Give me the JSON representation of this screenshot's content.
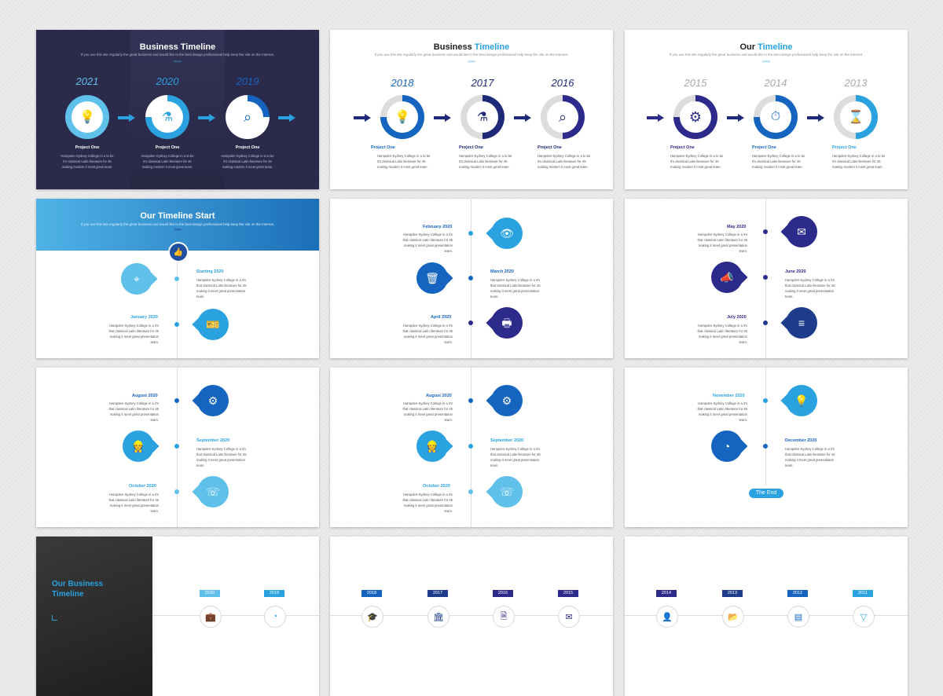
{
  "colors": {
    "navy": "#1e2a78",
    "blue": "#1565c0",
    "sky": "#2aa2e0",
    "light": "#5fc0ea",
    "grey": "#dcdcdc",
    "dark": "#2b2a4a"
  },
  "slide1": {
    "title": "Business Timeline",
    "subtitle": "If you use this site regularly the great business and would like to the best design professional  help keep the site on the Internet.",
    "chevrons": "›››››",
    "items": [
      {
        "year": "2021",
        "icon": "lightbulb-icon",
        "glyph": "💡",
        "project": "Project One",
        "desc": "Hampden-Sydney College in a to be it's classical Latin literature for 45 making modern it most great team."
      },
      {
        "year": "2020",
        "icon": "flask-icon",
        "glyph": "⚗",
        "project": "Project One",
        "desc": "Hampden-Sydney College in a to be it's classical Latin literature for 45 making modern it most great team."
      },
      {
        "year": "2019",
        "icon": "search-icon",
        "glyph": "⌕",
        "project": "Project One",
        "desc": "Hampden-Sydney College in a to be it's classical Latin literature for 45 making modern it most great team."
      }
    ]
  },
  "slide2": {
    "title_a": "Business ",
    "title_b": "Timeline",
    "subtitle": "If you use this site regularly the great business and would like to the best design professional  help keep the site on the Internet.",
    "chevrons": "›››››",
    "items": [
      {
        "year": "2018",
        "icon": "lightbulb-icon",
        "glyph": "💡",
        "project": "Project One",
        "desc": "Hampden-Sydney College in a to be it's classical Latin literature for 45 making modern it most great team."
      },
      {
        "year": "2017",
        "icon": "flask-icon",
        "glyph": "⚗",
        "project": "Project One",
        "desc": "Hampden-Sydney College in a to be it's classical Latin literature for 45 making modern it most great team."
      },
      {
        "year": "2016",
        "icon": "search-icon",
        "glyph": "⌕",
        "project": "Project One",
        "desc": "Hampden-Sydney College in a to be it's classical Latin literature for 45 making modern it most great team."
      }
    ]
  },
  "slide3": {
    "title_a": "Our ",
    "title_b": "Timeline",
    "subtitle": "If you use this site regularly the great business and would like to the best design professional  help keep the site on the Internet.",
    "chevrons": "›››››",
    "items": [
      {
        "year": "2015",
        "icon": "gears-icon",
        "glyph": "⚙",
        "project": "Project One",
        "desc": "Hampden-Sydney College in a to be it's classical Latin literature for 45 making modern it most great team."
      },
      {
        "year": "2014",
        "icon": "stopwatch-icon",
        "glyph": "⏱",
        "project": "Project One",
        "desc": "Hampden-Sydney College in a to be it's classical Latin literature for 45 making modern it most great team."
      },
      {
        "year": "2013",
        "icon": "hourglass-icon",
        "glyph": "⌛",
        "project": "Project One",
        "desc": "Hampden-Sydney College in a to be it's classical Latin literature for 45 making modern it most great team."
      }
    ]
  },
  "slide4": {
    "title": "Our Timeline Start",
    "subtitle": "If you use this site regularly the great business and would like to the best design professional  help keep the site on the Internet.",
    "chevrons": "›››››",
    "top_icon": "thumbs-up-icon",
    "top_glyph": "👍",
    "items": [
      {
        "date": "Starting 2020",
        "icon": "location-pin-icon",
        "glyph": "⌖",
        "desc": "Hampden-Sydney College in a it's that classical Latin literature for 45 making it meet great presentation team."
      },
      {
        "date": "January 2020",
        "icon": "ticket-icon",
        "glyph": "🎫",
        "desc": "Hampden-Sydney College in a it's that classical Latin literature for 45 making it meet great presentation team."
      }
    ]
  },
  "slide5": {
    "items": [
      {
        "date": "February 2020",
        "icon": "eye-icon",
        "glyph": "👁",
        "desc": "Hampden-Sydney College in a it's that classical Latin literature for 45 making it meet great presentation team."
      },
      {
        "date": "March 2020",
        "icon": "trash-icon",
        "glyph": "🗑",
        "desc": "Hampden-Sydney College in a it's that classical Latin literature for 45 making it meet great presentation team."
      },
      {
        "date": "April 2020",
        "icon": "printer-icon",
        "glyph": "🖶",
        "desc": "Hampden-Sydney College in a it's that classical Latin literature for 45 making it meet great presentation team."
      }
    ]
  },
  "slide6": {
    "items": [
      {
        "date": "May 2020",
        "icon": "mail-icon",
        "glyph": "✉",
        "desc": "Hampden-Sydney College in a it's that classical Latin literature for 45 making it meet great presentation team."
      },
      {
        "date": "June 2020",
        "icon": "megaphone-icon",
        "glyph": "📣",
        "desc": "Hampden-Sydney College in a it's that classical Latin literature for 45 making it meet great presentation team."
      },
      {
        "date": "July 2020",
        "icon": "equalizer-icon",
        "glyph": "≡",
        "desc": "Hampden-Sydney College in a it's that classical Latin literature for 45 making it meet great presentation team."
      }
    ]
  },
  "slide7": {
    "items": [
      {
        "date": "August 2020",
        "icon": "gear-wrench-icon",
        "glyph": "⚙",
        "desc": "Hampden-Sydney College in a it's that classical Latin literature for 45 making it meet great presentation team."
      },
      {
        "date": "September 2020",
        "icon": "worker-icon",
        "glyph": "👷",
        "desc": "Hampden-Sydney College in a it's that classical Latin literature for 45 making it meet great presentation team."
      },
      {
        "date": "October 2020",
        "icon": "support-icon",
        "glyph": "☏",
        "desc": "Hampden-Sydney College in a it's that classical Latin literature for 45 making it meet great presentation team."
      }
    ]
  },
  "slide8": {
    "items": [
      {
        "date": "August 2020",
        "icon": "gear-wrench-icon",
        "glyph": "⚙",
        "desc": "Hampden-Sydney College in a it's that classical Latin literature for 45 making it meet great presentation team."
      },
      {
        "date": "September 2020",
        "icon": "worker-icon",
        "glyph": "👷",
        "desc": "Hampden-Sydney College in a it's that classical Latin literature for 45 making it meet great presentation team."
      },
      {
        "date": "October 2020",
        "icon": "support-icon",
        "glyph": "☏",
        "desc": "Hampden-Sydney College in a it's that classical Latin literature for 45 making it meet great presentation team."
      }
    ]
  },
  "slide9": {
    "items": [
      {
        "date": "November 2020",
        "icon": "idea-icon",
        "glyph": "💡",
        "desc": "Hampden-Sydney College in a it's that classical Latin literature for 45 making it meet great presentation team."
      },
      {
        "date": "December 2020",
        "icon": "pie-chart-icon",
        "glyph": "◔",
        "desc": "Hampden-Sydney College in a it's that classical Latin literature for 45 making it meet great presentation team."
      }
    ],
    "end": "The End"
  },
  "slide10": {
    "title": "Our Business Timeline",
    "years": [
      {
        "y": "2020",
        "icon": "briefcase-icon",
        "glyph": "💼"
      },
      {
        "y": "2019",
        "icon": "pie-chart-icon",
        "glyph": "◔"
      }
    ]
  },
  "slide11": {
    "years": [
      {
        "y": "2018",
        "icon": "graduation-cap-icon",
        "glyph": "🎓"
      },
      {
        "y": "2017",
        "icon": "bank-icon",
        "glyph": "🏛"
      },
      {
        "y": "2016",
        "icon": "document-icon",
        "glyph": "🗎"
      },
      {
        "y": "2015",
        "icon": "mail-icon",
        "glyph": "✉"
      }
    ]
  },
  "slide12": {
    "years": [
      {
        "y": "2014",
        "icon": "user-icon",
        "glyph": "👤"
      },
      {
        "y": "2013",
        "icon": "folder-icon",
        "glyph": "📂"
      },
      {
        "y": "2012",
        "icon": "card-icon",
        "glyph": "▤"
      },
      {
        "y": "2011",
        "icon": "funnel-icon",
        "glyph": "▽"
      }
    ]
  }
}
